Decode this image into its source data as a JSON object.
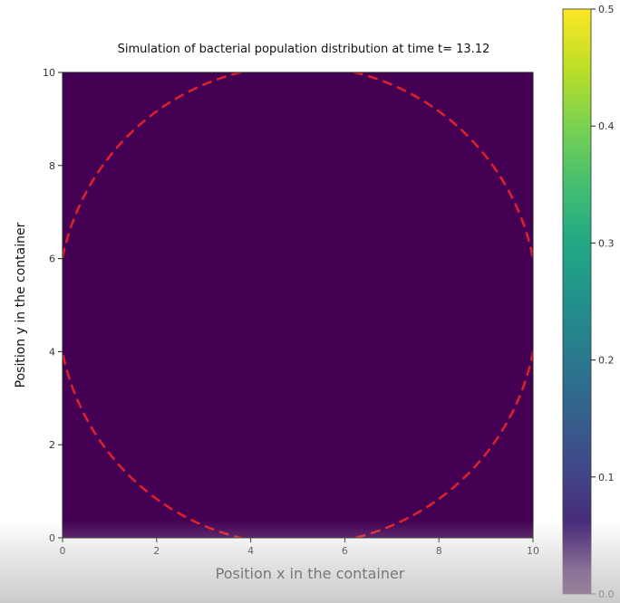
{
  "chart_data": {
    "type": "heatmap",
    "title": "Simulation of bacterial population distribution at time t= 13.12",
    "xlabel": "Position x in the container",
    "ylabel": "Position y in the container",
    "xlim": [
      0,
      10
    ],
    "ylim": [
      0,
      10
    ],
    "xticks": [
      0,
      2,
      4,
      6,
      8,
      10
    ],
    "yticks": [
      0,
      2,
      4,
      6,
      8,
      10
    ],
    "field_value": 0.0,
    "colormap": "viridis",
    "colorbar": {
      "range": [
        0.0,
        0.5
      ],
      "ticks": [
        0.0,
        0.1,
        0.2,
        0.3,
        0.4,
        0.5
      ]
    },
    "boundary_circle": {
      "center": [
        5,
        5
      ],
      "radius": 5.1,
      "style": "dashed",
      "color": "#e0202a"
    }
  }
}
